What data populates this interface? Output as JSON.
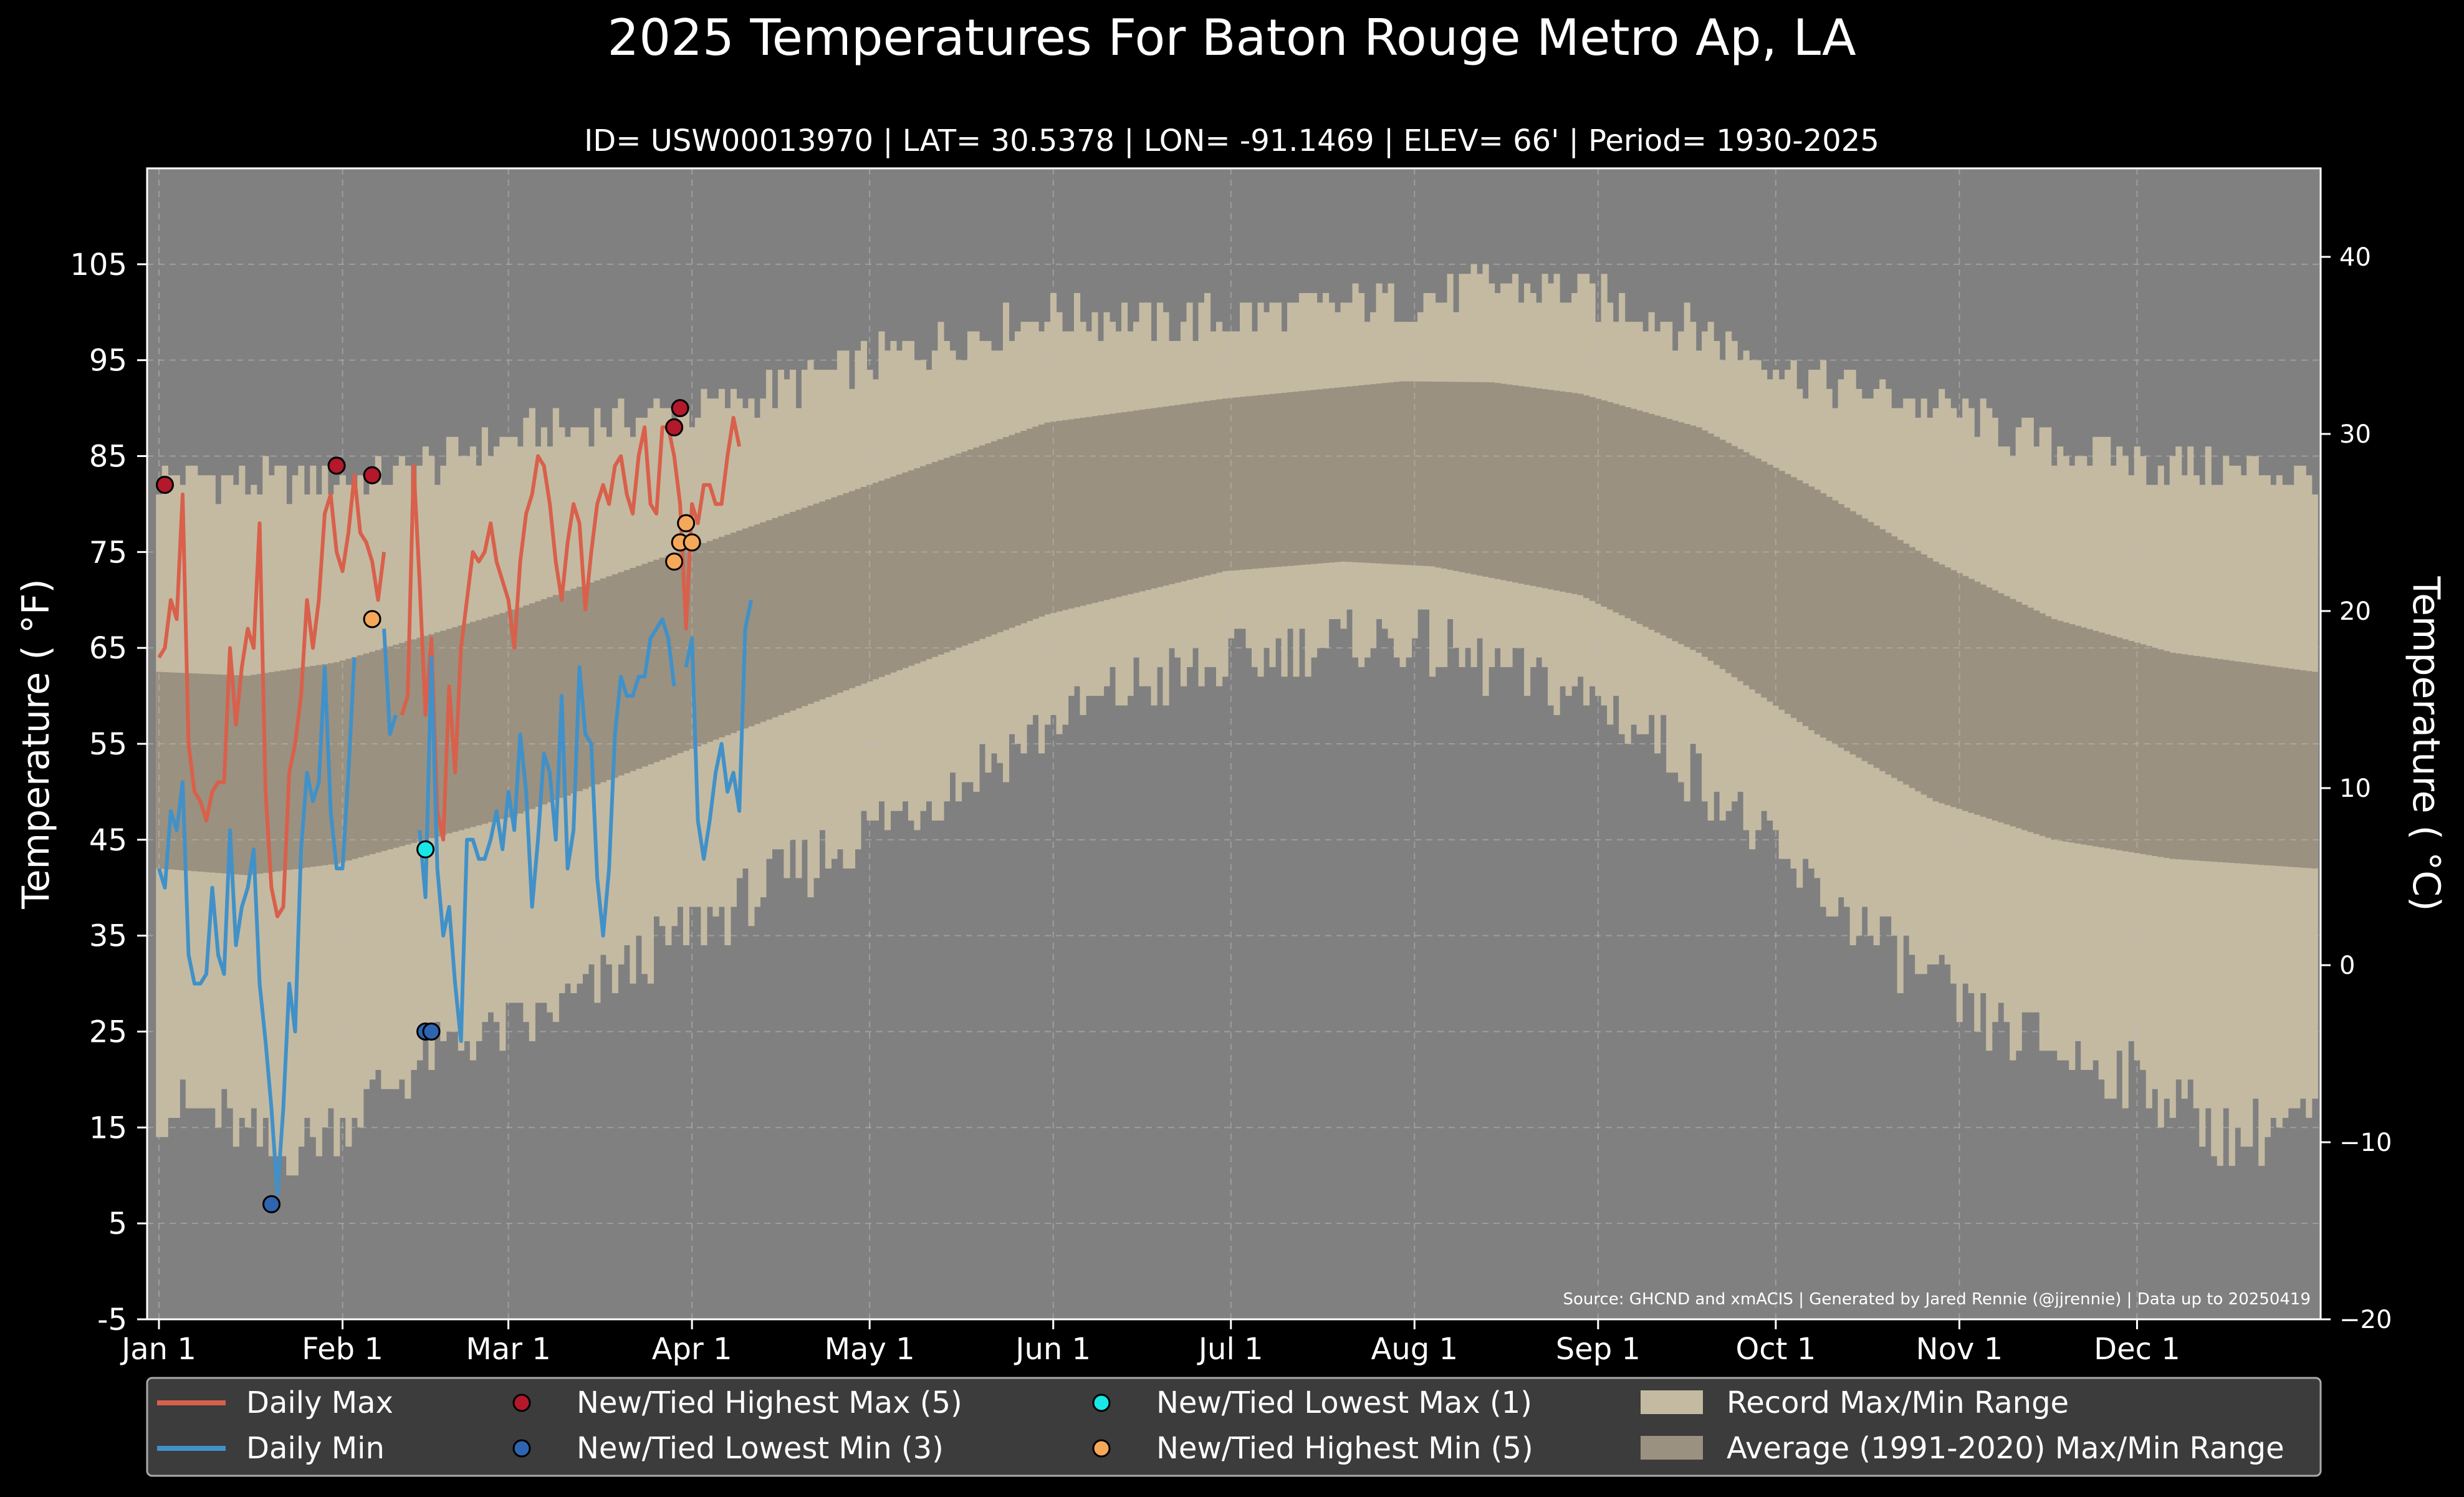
{
  "chart_data": {
    "type": "line",
    "title": "2025 Temperatures For Baton Rouge Metro Ap, LA",
    "subtitle": "ID= USW00013970 | LAT= 30.5378 | LON= -91.1469 | ELEV= 66' | Period= 1930-2025",
    "ylabel_left": "Temperature ( °F)",
    "ylabel_right": "Temperature ( °C)",
    "source": "Source: GHCND and xmACIS | Generated by Jared Rennie (@jjrennie) | Data up to 20250419",
    "ylim_f": [
      -5,
      115
    ],
    "ylim_c": [
      -20,
      45
    ],
    "xlim_day": [
      -2,
      365
    ],
    "y_ticks_f": [
      "105",
      "95",
      "85",
      "75",
      "65",
      "55",
      "45",
      "35",
      "25",
      "15",
      "5",
      "-5"
    ],
    "y_ticks_c": [
      "40",
      "30",
      "20",
      "10",
      "0",
      "−10",
      "−20"
    ],
    "x_ticks": [
      "Jan 1",
      "Feb 1",
      "Mar 1",
      "Apr 1",
      "May 1",
      "Jun 1",
      "Jul 1",
      "Aug 1",
      "Sep 1",
      "Oct 1",
      "Nov 1",
      "Dec 1"
    ],
    "x_tick_days": [
      0,
      31,
      59,
      90,
      120,
      151,
      181,
      212,
      243,
      273,
      304,
      334
    ],
    "grid": true,
    "colors": {
      "background": "#808080",
      "record_band": "#c4baa2",
      "normal_band": "#9b9180",
      "daily_max": "#d9604b",
      "daily_min": "#4191c8",
      "record_high_max": "#b3182b",
      "record_low_min": "#2f64b0",
      "record_low_max": "#19e6e6",
      "record_high_min": "#f5a85a",
      "legend_bg": "#3c3c3c"
    },
    "record_max_anchors_f": [
      [
        0,
        83
      ],
      [
        20,
        82
      ],
      [
        40,
        83
      ],
      [
        60,
        87
      ],
      [
        80,
        89
      ],
      [
        100,
        91
      ],
      [
        120,
        95
      ],
      [
        140,
        98
      ],
      [
        150,
        100
      ],
      [
        170,
        99
      ],
      [
        190,
        100
      ],
      [
        210,
        101
      ],
      [
        225,
        103
      ],
      [
        240,
        102
      ],
      [
        255,
        99
      ],
      [
        265,
        97
      ],
      [
        280,
        93
      ],
      [
        300,
        90
      ],
      [
        320,
        86
      ],
      [
        340,
        84
      ],
      [
        364,
        83
      ]
    ],
    "record_min_anchors_f": [
      [
        0,
        17
      ],
      [
        10,
        16
      ],
      [
        20,
        12
      ],
      [
        30,
        15
      ],
      [
        40,
        20
      ],
      [
        50,
        24
      ],
      [
        60,
        25
      ],
      [
        75,
        30
      ],
      [
        90,
        36
      ],
      [
        100,
        39
      ],
      [
        120,
        46
      ],
      [
        135,
        51
      ],
      [
        150,
        57
      ],
      [
        165,
        61
      ],
      [
        180,
        63
      ],
      [
        190,
        65
      ],
      [
        210,
        66
      ],
      [
        230,
        62
      ],
      [
        245,
        59
      ],
      [
        260,
        52
      ],
      [
        275,
        42
      ],
      [
        290,
        35
      ],
      [
        305,
        27
      ],
      [
        320,
        23
      ],
      [
        335,
        20
      ],
      [
        350,
        14
      ],
      [
        364,
        16
      ]
    ],
    "normal_max_anchors_f": [
      [
        0,
        62.5
      ],
      [
        15,
        62.1
      ],
      [
        30,
        63.5
      ],
      [
        60,
        69
      ],
      [
        90,
        75.5
      ],
      [
        120,
        82
      ],
      [
        150,
        88.5
      ],
      [
        180,
        91
      ],
      [
        210,
        92.8
      ],
      [
        225,
        92.7
      ],
      [
        240,
        91.5
      ],
      [
        260,
        88
      ],
      [
        280,
        81.5
      ],
      [
        300,
        74
      ],
      [
        320,
        68
      ],
      [
        340,
        64.5
      ],
      [
        364,
        62.5
      ]
    ],
    "normal_min_anchors_f": [
      [
        0,
        42
      ],
      [
        15,
        41.3
      ],
      [
        30,
        42.5
      ],
      [
        60,
        47.5
      ],
      [
        90,
        54.5
      ],
      [
        120,
        61.5
      ],
      [
        150,
        68.5
      ],
      [
        180,
        73
      ],
      [
        200,
        74
      ],
      [
        215,
        73.5
      ],
      [
        240,
        70.5
      ],
      [
        260,
        64.5
      ],
      [
        280,
        56
      ],
      [
        300,
        49
      ],
      [
        320,
        45
      ],
      [
        340,
        43
      ],
      [
        364,
        42
      ]
    ],
    "series": [
      {
        "name": "Daily Max",
        "start_day": 0,
        "values": [
          64,
          65,
          70,
          68,
          81,
          55,
          50,
          49,
          47,
          50,
          51,
          51,
          65,
          57,
          63,
          67,
          65,
          78,
          50,
          40,
          37,
          38,
          52,
          55,
          60,
          70,
          65,
          70,
          79,
          81,
          75,
          73,
          77,
          83,
          77,
          76,
          74,
          70,
          75,
          null,
          null,
          58,
          60,
          84,
          72,
          58,
          66,
          48,
          45,
          61,
          52,
          65,
          70,
          75,
          74,
          75,
          78,
          74,
          72,
          70,
          65,
          74,
          79,
          81,
          85,
          84,
          80,
          74,
          70,
          76,
          80,
          78,
          69,
          75,
          80,
          82,
          80,
          84,
          85,
          81,
          79,
          85,
          88,
          80,
          79,
          88,
          88,
          85,
          80,
          67,
          80,
          78,
          82,
          82,
          80,
          80,
          85,
          89,
          86
        ]
      },
      {
        "name": "Daily Min",
        "start_day": 0,
        "values": [
          42,
          40,
          48,
          46,
          51,
          33,
          30,
          30,
          31,
          40,
          33,
          31,
          46,
          34,
          38,
          40,
          44,
          30,
          24,
          17,
          8,
          17,
          30,
          25,
          44,
          52,
          49,
          51,
          63,
          48,
          42,
          42,
          52,
          64,
          null,
          null,
          null,
          null,
          67,
          56,
          58,
          null,
          null,
          null,
          46,
          39,
          64,
          42,
          35,
          38,
          30,
          24,
          45,
          45,
          43,
          43,
          45,
          48,
          44,
          50,
          46,
          56,
          50,
          38,
          45,
          54,
          52,
          45,
          60,
          42,
          46,
          63,
          56,
          55,
          41,
          35,
          42,
          56,
          62,
          60,
          60,
          62,
          62,
          66,
          67,
          68,
          66,
          61,
          null,
          63,
          66,
          47,
          43,
          47,
          52,
          55,
          50,
          52,
          48,
          67,
          70
        ]
      }
    ],
    "record_points": {
      "New/Tied Highest Max (5)": [
        [
          1,
          82
        ],
        [
          30,
          84
        ],
        [
          36,
          83
        ],
        [
          87,
          88
        ],
        [
          88,
          90
        ]
      ],
      "New/Tied Lowest Min (3)": [
        [
          19,
          7
        ],
        [
          45,
          25
        ],
        [
          46,
          25
        ]
      ],
      "New/Tied Lowest Max (1)": [
        [
          45,
          44
        ]
      ],
      "New/Tied Highest Min (5)": [
        [
          36,
          68
        ],
        [
          87,
          74
        ],
        [
          88,
          76
        ],
        [
          89,
          78
        ],
        [
          90,
          76
        ]
      ]
    },
    "legend": {
      "labels": [
        "Daily Max",
        "Daily Min",
        "New/Tied Highest Max (5)",
        "New/Tied Lowest Min (3)",
        "New/Tied Lowest Max (1)",
        "New/Tied Highest Min (5)",
        "Record Max/Min Range",
        "Average (1991-2020) Max/Min Range"
      ],
      "placement": "bottom"
    }
  }
}
